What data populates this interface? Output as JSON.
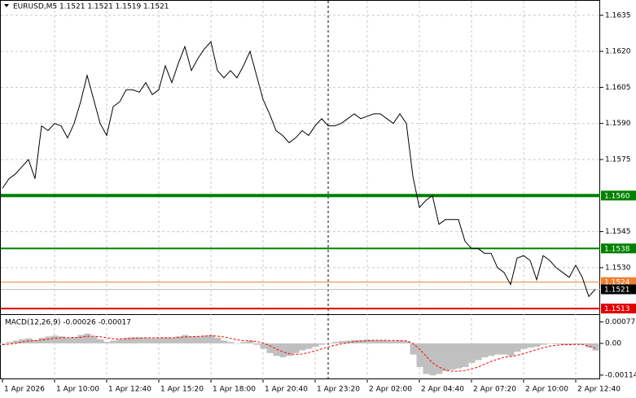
{
  "chart_data": [
    {
      "type": "line",
      "title": "EURUSD,M5  1.1521 1.1521 1.1519 1.1521",
      "color": "#000000",
      "grid": true,
      "values": [
        1.1563,
        1.1567,
        1.1569,
        1.1572,
        1.1575,
        1.1567,
        1.1589,
        1.1587,
        1.159,
        1.1589,
        1.1584,
        1.159,
        1.1599,
        1.161,
        1.16,
        1.159,
        1.1585,
        1.1597,
        1.1599,
        1.1604,
        1.1604,
        1.1603,
        1.1607,
        1.1602,
        1.1604,
        1.1614,
        1.1607,
        1.1615,
        1.1622,
        1.1612,
        1.1617,
        1.1621,
        1.1624,
        1.1612,
        1.1609,
        1.1612,
        1.1609,
        1.1614,
        1.162,
        1.161,
        1.16,
        1.1594,
        1.1587,
        1.1585,
        1.1582,
        1.1584,
        1.1587,
        1.1585,
        1.1589,
        1.1592,
        1.1589,
        1.1589,
        1.159,
        1.1592,
        1.1594,
        1.1592,
        1.1593,
        1.1594,
        1.1594,
        1.1592,
        1.159,
        1.1594,
        1.159,
        1.1568,
        1.1555,
        1.1558,
        1.156,
        1.1548,
        1.155,
        1.155,
        1.155,
        1.1541,
        1.1538,
        1.1538,
        1.1536,
        1.1536,
        1.153,
        1.1528,
        1.1523,
        1.1534,
        1.1535,
        1.1533,
        1.1525,
        1.1535,
        1.1533,
        1.153,
        1.1528,
        1.1526,
        1.1531,
        1.1526,
        1.1518,
        1.1521
      ],
      "ylim": [
        1.1511,
        1.164
      ],
      "yticks": [
        1.1635,
        {
          "value": 1.162,
          "label": "1.1620"
        },
        1.1605,
        {
          "value": 1.159,
          "label": "1.1590"
        },
        1.1575,
        1.1545,
        {
          "value": 1.153,
          "label": "1.1530"
        }
      ],
      "levels": [
        {
          "value": 1.156,
          "label": "1.1560",
          "color": "#008000",
          "width": 4
        },
        {
          "value": 1.1538,
          "color": "#008000",
          "width": 2
        },
        {
          "value": 1.1524,
          "color": "#f08030",
          "width": 1
        },
        {
          "value": 1.1521,
          "color": "#000000",
          "width": 1
        },
        {
          "value": 1.1513,
          "color": "#e00000",
          "width": 2
        }
      ],
      "x_labels": [
        "1 Apr 2026",
        "1 Apr 10:00",
        "1 Apr 12:40",
        "1 Apr 15:20",
        "1 Apr 18:00",
        "1 Apr 20:40",
        "1 Apr 23:20",
        "2 Apr 02:00",
        "2 Apr 04:40",
        "2 Apr 07:20",
        "2 Apr 10:00",
        "2 Apr 12:40"
      ]
    },
    {
      "type": "macd",
      "title": "MACD(12,26,9) -0.00026 -0.00017",
      "histogram": {
        "color": "#c0c0c0",
        "values": [
          -5e-05,
          5e-05,
          0.0001,
          0.00015,
          0.00018,
          0.00012,
          0.0002,
          0.00025,
          0.00028,
          0.00025,
          0.0002,
          0.00022,
          0.0003,
          0.00035,
          0.00025,
          0.00015,
          5e-05,
          0.0001,
          0.00015,
          0.0002,
          0.00022,
          0.00022,
          0.0002,
          0.00018,
          0.0002,
          0.00022,
          0.0002,
          0.00025,
          0.0003,
          0.00025,
          0.00025,
          0.00028,
          0.0003,
          0.0002,
          0.0001,
          5e-05,
          0,
          5e-05,
          0.0001,
          -5e-05,
          -0.0002,
          -0.00035,
          -0.00045,
          -0.0005,
          -0.00045,
          -0.00035,
          -0.00025,
          -0.0002,
          -0.00012,
          -5e-05,
          0,
          5e-05,
          8e-05,
          0.0001,
          0.00012,
          0.00012,
          0.00013,
          0.00012,
          0.00012,
          0.0001,
          8e-05,
          0.0001,
          8e-05,
          -0.0004,
          -0.00085,
          -0.0011,
          -0.00115,
          -0.0011,
          -0.001,
          -0.00095,
          -0.0009,
          -0.00085,
          -0.0007,
          -0.0006,
          -0.0005,
          -0.00045,
          -0.0004,
          -0.0004,
          -0.00045,
          -0.0003,
          -0.0002,
          -0.00015,
          -0.00012,
          -5e-05,
          0,
          -3e-05,
          -5e-05,
          -5e-05,
          -3e-05,
          -5e-05,
          -0.00015,
          -0.00026
        ]
      },
      "signal": {
        "color": "#ff0000",
        "values": [
          -5e-05,
          -3e-05,
          0,
          5e-05,
          8e-05,
          0.0001,
          0.00012,
          0.00015,
          0.00018,
          0.0002,
          0.00021,
          0.00021,
          0.00022,
          0.00025,
          0.00026,
          0.00024,
          0.0002,
          0.00017,
          0.00016,
          0.00017,
          0.00018,
          0.00019,
          0.0002,
          0.0002,
          0.0002,
          0.0002,
          0.0002,
          0.00021,
          0.00023,
          0.00024,
          0.00025,
          0.00026,
          0.00027,
          0.00026,
          0.00023,
          0.00018,
          0.00013,
          0.0001,
          9e-05,
          7e-05,
          2e-05,
          -8e-05,
          -0.0002,
          -0.0003,
          -0.00037,
          -0.0004,
          -0.00038,
          -0.00033,
          -0.00027,
          -0.0002,
          -0.00013,
          -7e-05,
          -2e-05,
          2e-05,
          6e-05,
          8e-05,
          0.0001,
          0.00011,
          0.00011,
          0.00011,
          0.0001,
          0.0001,
          9e-05,
          0,
          -0.0002,
          -0.00045,
          -0.0007,
          -0.00085,
          -0.00095,
          -0.001,
          -0.001,
          -0.00097,
          -0.00092,
          -0.00085,
          -0.00075,
          -0.00065,
          -0.00057,
          -0.0005,
          -0.00047,
          -0.00043,
          -0.00037,
          -0.0003,
          -0.00022,
          -0.00016,
          -0.0001,
          -7e-05,
          -5e-05,
          -5e-05,
          -4e-05,
          -4e-05,
          -0.0001,
          -0.00017
        ]
      },
      "ylim": [
        -0.00126,
        0.00099
      ],
      "yticks": [
        0.00077,
        {
          "value": 0,
          "label": "0.00"
        },
        -0.00114
      ]
    }
  ]
}
